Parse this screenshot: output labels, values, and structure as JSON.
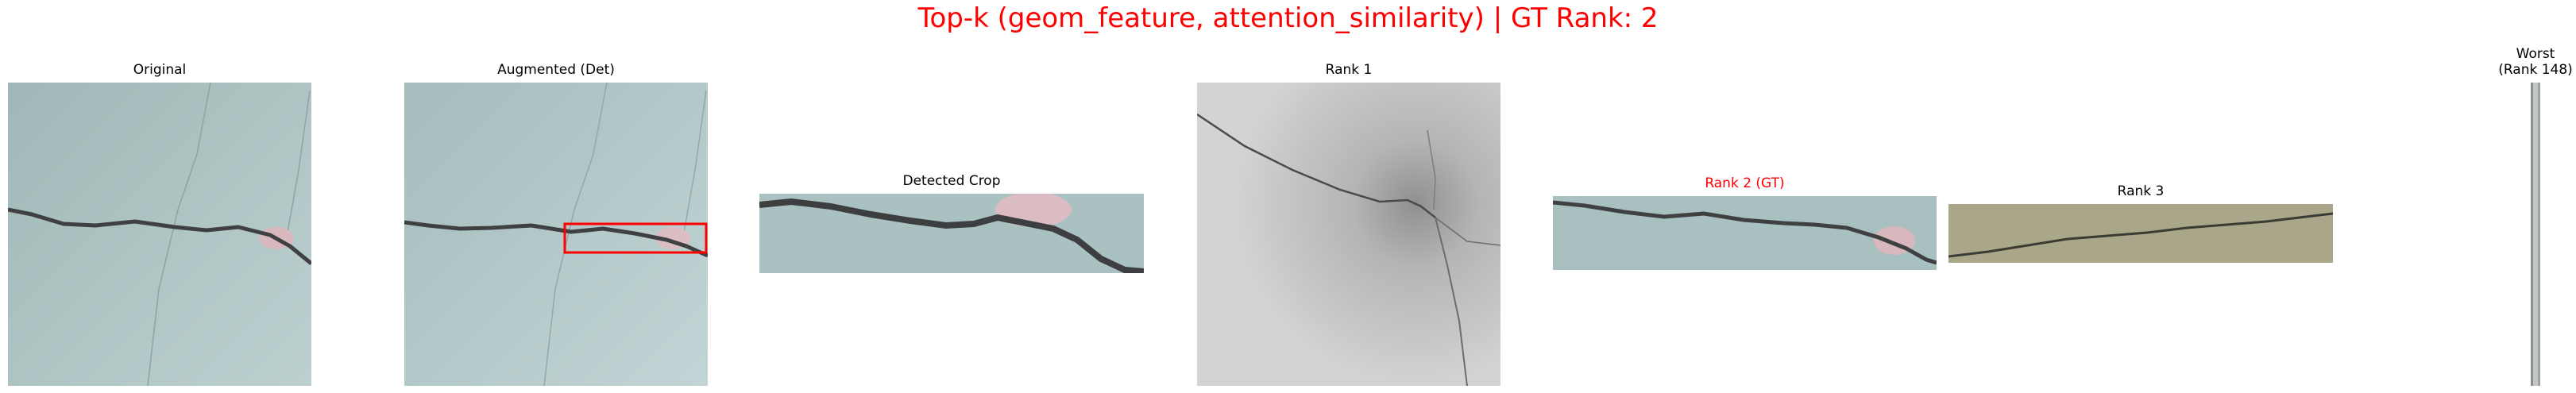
{
  "figure": {
    "title": "Top-k (geom_feature, attention_similarity) | GT Rank: 2",
    "title_color": "#ff0000",
    "background": "#ffffff"
  },
  "panels": {
    "original": {
      "title": "Original"
    },
    "augmented": {
      "title": "Augmented (Det)",
      "box_color": "#ff0000"
    },
    "detected_crop": {
      "title": "Detected Crop"
    },
    "rank1": {
      "title": "Rank 1"
    },
    "rank2": {
      "title": "Rank 2 (GT)",
      "title_color": "#ff0000"
    },
    "rank3": {
      "title": "Rank 3"
    },
    "worst": {
      "title": "Worst\n(Rank 148)"
    }
  },
  "colors": {
    "concrete_blue": "#a9c0bf",
    "concrete_grey": "#c9c9c7",
    "concrete_olive": "#aaa68a",
    "crack": "#3f4042",
    "paint_spot": "#d8b8bd"
  }
}
